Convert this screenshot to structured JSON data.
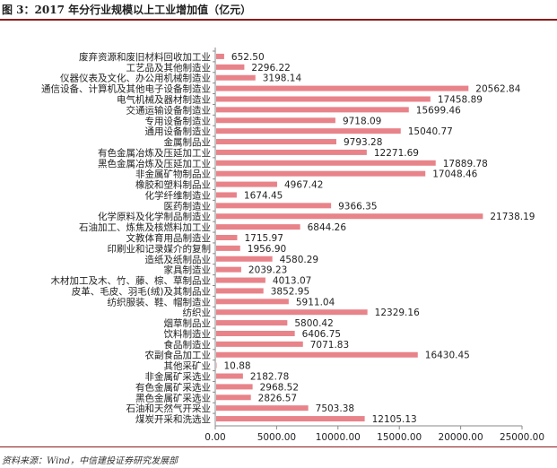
{
  "header": {
    "title": "图 3：2017 年分行业规模以上工业增加值（亿元）"
  },
  "footer": {
    "source": "资料来源：Wind，中信建投证券研究发展部"
  },
  "chart_data": {
    "type": "bar",
    "orientation": "horizontal",
    "title": "",
    "xlabel": "",
    "ylabel": "",
    "xlim": [
      0,
      25000
    ],
    "xticks": [
      "0.00",
      "5000.00",
      "10000.00",
      "15000.00",
      "20000.00",
      "25000.00"
    ],
    "grid": false,
    "color": "#e8838a",
    "categories": [
      "废弃资源和废旧材料回收加工业",
      "工艺品及其他制造业",
      "仪器仪表及文化、办公用机械制造业",
      "通信设备、计算机及其他电子设备制造业",
      "电气机械及器材制造业",
      "交通运输设备制造业",
      "专用设备制造业",
      "通用设备制造业",
      "金属制品业",
      "有色金属冶炼及压延加工业",
      "黑色金属冶炼及压延加工业",
      "非金属矿物制品业",
      "橡胶和塑料制品业",
      "化学纤维制造业",
      "医药制造业",
      "化学原料及化学制品制造业",
      "石油加工、炼焦及核燃料加工业",
      "文教体育用品制造业",
      "印刷业和记录媒介的复制",
      "造纸及纸制品业",
      "家具制造业",
      "木材加工及木、竹、藤、棕、草制品业",
      "皮革、毛皮、羽毛(绒)及其制品业",
      "纺织服装、鞋、帽制造业",
      "纺织业",
      "烟草制品业",
      "饮料制造业",
      "食品制造业",
      "农副食品加工业",
      "其他采矿业",
      "非金属矿采选业",
      "有色金属矿采选业",
      "黑色金属矿采选业",
      "石油和天然气开采业",
      "煤炭开采和洗选业"
    ],
    "values": [
      652.5,
      2296.22,
      3198.14,
      20562.84,
      17458.89,
      15699.46,
      9718.09,
      15040.77,
      9793.28,
      12271.69,
      17889.78,
      17048.46,
      4967.42,
      1674.45,
      9366.35,
      21738.19,
      6844.26,
      1715.97,
      1956.9,
      4580.29,
      2039.23,
      4013.07,
      3852.95,
      5911.04,
      12329.16,
      5800.42,
      6406.75,
      7071.83,
      16430.45,
      10.88,
      2182.78,
      2968.52,
      2826.57,
      7503.38,
      12105.13
    ],
    "value_labels": [
      "652.50",
      "2296.22",
      "3198.14",
      "20562.84",
      "17458.89",
      "15699.46",
      "9718.09",
      "15040.77",
      "9793.28",
      "12271.69",
      "17889.78",
      "17048.46",
      "4967.42",
      "1674.45",
      "9366.35",
      "21738.19",
      "6844.26",
      "1715.97",
      "1956.90",
      "4580.29",
      "2039.23",
      "4013.07",
      "3852.95",
      "5911.04",
      "12329.16",
      "5800.42",
      "6406.75",
      "7071.83",
      "16430.45",
      "10.88",
      "2182.78",
      "2968.52",
      "2826.57",
      "7503.38",
      "12105.13"
    ]
  }
}
